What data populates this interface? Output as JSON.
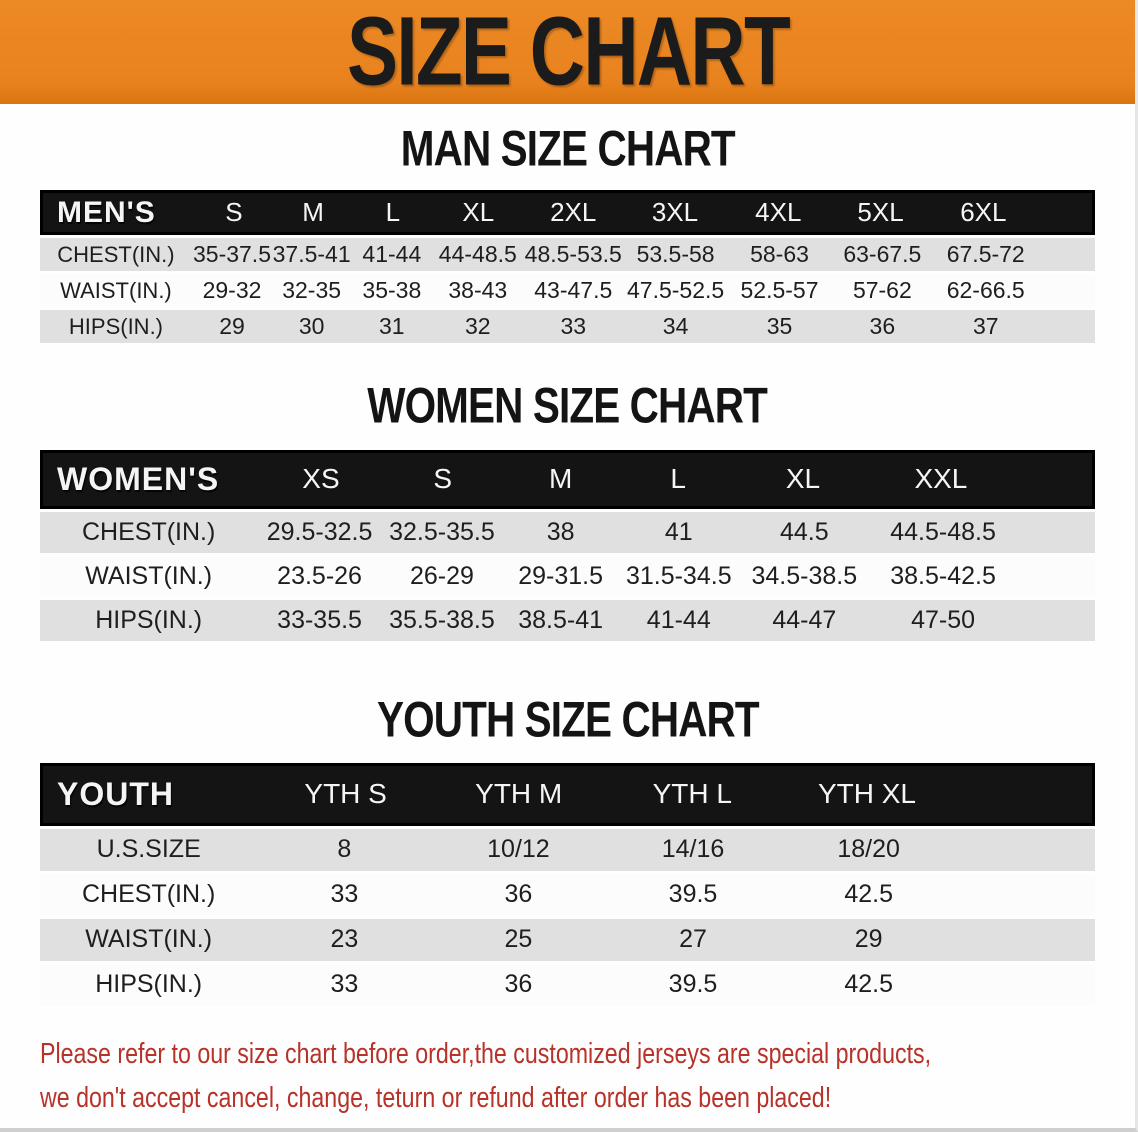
{
  "banner": {
    "title": "SIZE CHART"
  },
  "sections": [
    {
      "title": "MAN SIZE CHART",
      "table": {
        "header_label": "MEN'S",
        "columns": [
          "S",
          "M",
          "L",
          "XL",
          "2XL",
          "3XL",
          "4XL",
          "5XL",
          "6XL"
        ],
        "rows": [
          {
            "label": "CHEST(IN.)",
            "values": [
              "35-37.5",
              "37.5-41",
              "41-44",
              "44-48.5",
              "48.5-53.5",
              "53.5-58",
              "58-63",
              "63-67.5",
              "67.5-72"
            ]
          },
          {
            "label": "WAIST(IN.)",
            "values": [
              "29-32",
              "32-35",
              "35-38",
              "38-43",
              "43-47.5",
              "47.5-52.5",
              "52.5-57",
              "57-62",
              "62-66.5"
            ]
          },
          {
            "label": "HIPS(IN.)",
            "values": [
              "29",
              "30",
              "31",
              "32",
              "33",
              "34",
              "35",
              "36",
              "37"
            ]
          }
        ]
      }
    },
    {
      "title": "WOMEN SIZE CHART",
      "table": {
        "header_label": "WOMEN'S",
        "columns": [
          "XS",
          "S",
          "M",
          "L",
          "XL",
          "XXL"
        ],
        "rows": [
          {
            "label": "CHEST(IN.)",
            "values": [
              "29.5-32.5",
              "32.5-35.5",
              "38",
              "41",
              "44.5",
              "44.5-48.5"
            ]
          },
          {
            "label": "WAIST(IN.)",
            "values": [
              "23.5-26",
              "26-29",
              "29-31.5",
              "31.5-34.5",
              "34.5-38.5",
              "38.5-42.5"
            ]
          },
          {
            "label": "HIPS(IN.)",
            "values": [
              "33-35.5",
              "35.5-38.5",
              "38.5-41",
              "41-44",
              "44-47",
              "47-50"
            ]
          }
        ]
      }
    },
    {
      "title": "YOUTH SIZE CHART",
      "table": {
        "header_label": "YOUTH",
        "columns": [
          "YTH S",
          "YTH M",
          "YTH L",
          "YTH XL"
        ],
        "rows": [
          {
            "label": "U.S.SIZE",
            "values": [
              "8",
              "10/12",
              "14/16",
              "18/20"
            ]
          },
          {
            "label": "CHEST(IN.)",
            "values": [
              "33",
              "36",
              "39.5",
              "42.5"
            ]
          },
          {
            "label": "WAIST(IN.)",
            "values": [
              "23",
              "25",
              "27",
              "29"
            ]
          },
          {
            "label": "HIPS(IN.)",
            "values": [
              "33",
              "36",
              "39.5",
              "42.5"
            ]
          }
        ]
      }
    }
  ],
  "disclaimer": {
    "line1": "Please refer to our size chart before order,the customized jerseys are special products,",
    "line2": "we don't accept cancel, change, teturn or refund after order has been placed!"
  },
  "colors": {
    "banner_bg": "#e8821e",
    "banner_bg_light": "#ec8a25",
    "header_bg": "#141414",
    "row_gray": "#e0e0e0",
    "row_white": "#fcfcfc",
    "warn_text": "#b73229"
  }
}
